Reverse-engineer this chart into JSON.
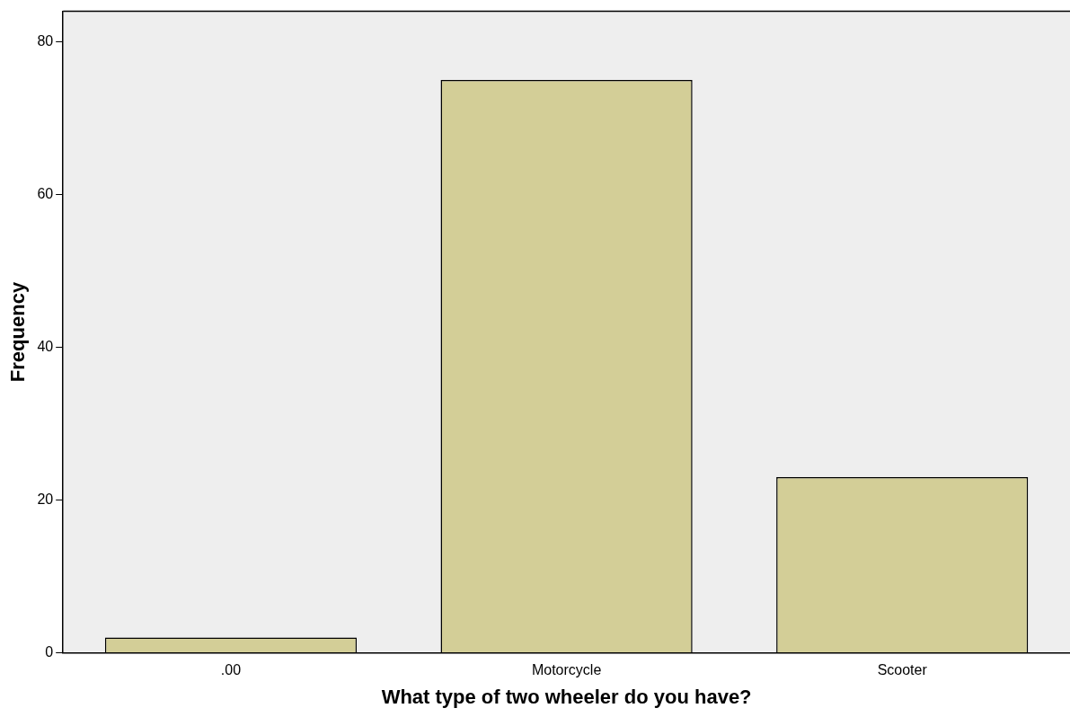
{
  "chart_data": {
    "type": "bar",
    "xlabel": "What type of two wheeler do you have?",
    "ylabel": "Frequency",
    "categories": [
      ".00",
      "Motorcycle",
      "Scooter"
    ],
    "values": [
      2,
      75,
      23
    ],
    "color": "#d3ce97",
    "ylim": [
      0,
      84
    ],
    "yticks": [
      0,
      20,
      40,
      60,
      80
    ],
    "grid": false,
    "legend": false
  }
}
